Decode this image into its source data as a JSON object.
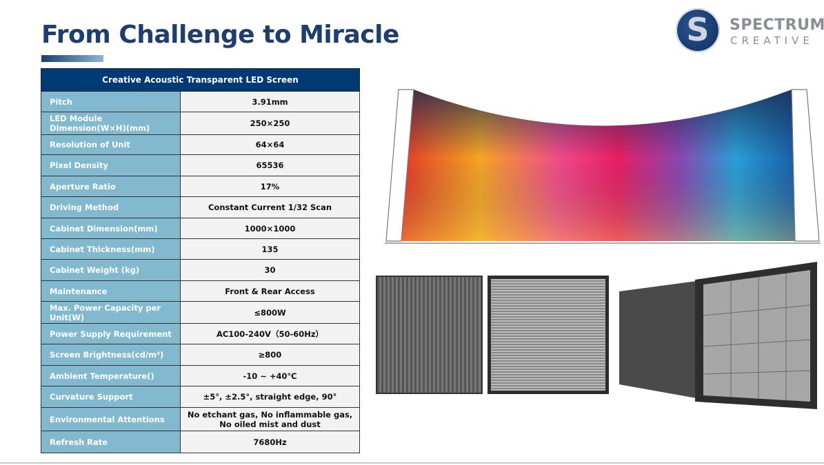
{
  "title": "From Challenge to  Miracle",
  "logo": {
    "line1": "SPECTRUM",
    "line2": "CREATIVE",
    "mark": "S"
  },
  "table": {
    "header": "Creative Acoustic Transparent LED Screen",
    "rows": [
      {
        "label": "Pitch",
        "value": "3.91mm"
      },
      {
        "label": "LED Module Dimension(W×H)(mm)",
        "value": "250×250"
      },
      {
        "label": "Resolution of Unit",
        "value": "64×64"
      },
      {
        "label": "Pixel Density",
        "value": "65536"
      },
      {
        "label": "Aperture Ratio",
        "value": "17%"
      },
      {
        "label": "Driving Method",
        "value": "Constant Current 1/32 Scan"
      },
      {
        "label": "Cabinet Dimension(mm)",
        "value": "1000×1000"
      },
      {
        "label": "Cabinet Thickness(mm)",
        "value": "135"
      },
      {
        "label": "Cabinet Weight (kg)",
        "value": "30"
      },
      {
        "label": "Maintenance",
        "value": "Front & Rear Access"
      },
      {
        "label": "Max. Power Capacity per Unit(W)",
        "value": "≤800W"
      },
      {
        "label": "Power Supply Requirement",
        "value": "AC100-240V（50-60Hz）"
      },
      {
        "label": "Screen Brightness(cd/m²)",
        "value": "≥800"
      },
      {
        "label": "Ambient Temperature()",
        "value": "-10 ~ +40℃"
      },
      {
        "label": "Curvature Support",
        "value": "±5°, ±2.5°, straight edge, 90°"
      },
      {
        "label": "Environmental Attentions",
        "value": "No etchant gas, No inflammable gas, No oiled mist and dust"
      },
      {
        "label": "Refresh Rate",
        "value": "7680Hz"
      }
    ]
  },
  "colors": {
    "title": "#1d3e6e",
    "header_bg": "#003a75",
    "label_bg": "#82b9cf",
    "value_bg": "#f2f2f2"
  }
}
